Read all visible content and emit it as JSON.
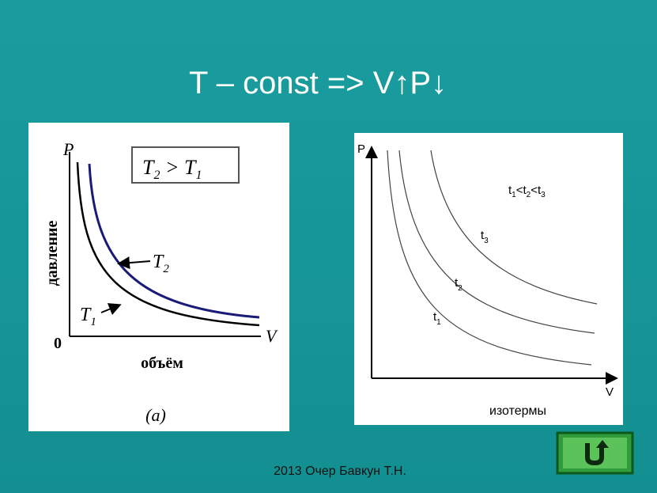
{
  "title": "T – const => V↑P↓",
  "left_panel": {
    "y_axis_letter": "P",
    "legend_parts": [
      "T",
      "2",
      " > T",
      "1"
    ],
    "y_axis_label": "давление",
    "origin_label": "0",
    "x_axis_letter": "V",
    "x_axis_label": "объём",
    "curve_upper_parts": [
      "T",
      "2"
    ],
    "curve_lower_parts": [
      "T",
      "1"
    ],
    "caption": "(a)"
  },
  "right_panel": {
    "y_axis_letter": "P",
    "order_parts": [
      "t",
      "1",
      "<t",
      "2",
      "<t",
      "3"
    ],
    "curve_3_parts": [
      "t",
      "3"
    ],
    "curve_2_parts": [
      "t",
      "2"
    ],
    "curve_1_parts": [
      "t",
      "1"
    ],
    "x_axis_letter": "V",
    "caption": "изотермы"
  },
  "footer": "2013 Очер Бавкун Т.Н."
}
